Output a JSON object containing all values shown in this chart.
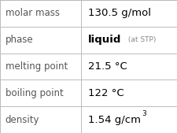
{
  "rows": [
    {
      "label": "molar mass",
      "value": "130.5 g/mol",
      "type": "plain"
    },
    {
      "label": "phase",
      "value": "liquid",
      "suffix": " (at STP)",
      "type": "phase"
    },
    {
      "label": "melting point",
      "value": "21.5 °C",
      "type": "plain"
    },
    {
      "label": "boiling point",
      "value": "122 °C",
      "type": "plain"
    },
    {
      "label": "density",
      "value": "1.54 g/cm",
      "superscript": "3",
      "type": "super"
    }
  ],
  "col_split": 0.455,
  "bg_color": "#ffffff",
  "border_color": "#bbbbbb",
  "label_color": "#555555",
  "value_color": "#000000",
  "suffix_color": "#888888",
  "label_fontsize": 8.5,
  "value_fontsize": 9.5,
  "suffix_fontsize": 6.5,
  "super_fontsize": 6.5,
  "figsize": [
    2.26,
    1.69
  ],
  "dpi": 100
}
